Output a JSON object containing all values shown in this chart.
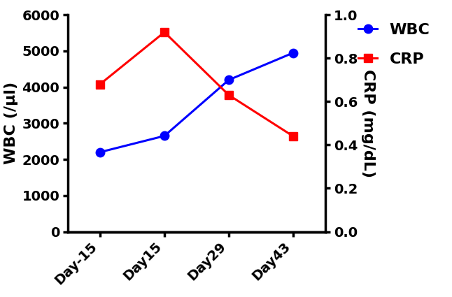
{
  "x_labels": [
    "Day-15",
    "Day15",
    "Day29",
    "Day43"
  ],
  "x_positions": [
    0,
    1,
    2,
    3
  ],
  "wbc_values": [
    2200,
    2650,
    4200,
    4950
  ],
  "crp_values": [
    0.68,
    0.92,
    0.63,
    0.44
  ],
  "wbc_color": "#0000FF",
  "crp_color": "#FF0000",
  "wbc_ylim": [
    0,
    6000
  ],
  "crp_ylim": [
    0.0,
    1.0
  ],
  "wbc_yticks": [
    0,
    1000,
    2000,
    3000,
    4000,
    5000,
    6000
  ],
  "crp_yticks": [
    0.0,
    0.2,
    0.4,
    0.6,
    0.8,
    1.0
  ],
  "wbc_ylabel": "WBC (/μl)",
  "crp_ylabel": "CRP (mg/dL)",
  "wbc_legend": "WBC",
  "crp_legend": "CRP",
  "background_color": "#ffffff",
  "tick_font_size": 14,
  "label_font_size": 16,
  "legend_font_size": 16,
  "spine_linewidth": 2.5,
  "line_width": 2.2,
  "marker_size": 9
}
